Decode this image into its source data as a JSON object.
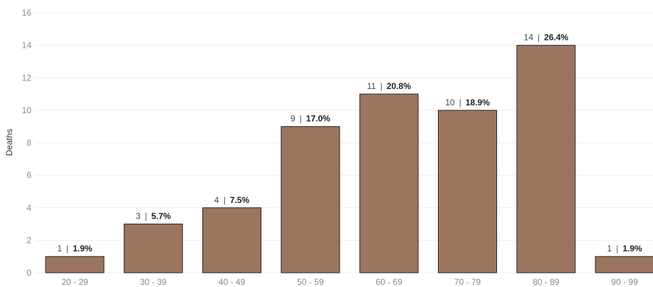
{
  "chart_data": {
    "type": "bar",
    "title": "",
    "xlabel": "",
    "ylabel": "Deaths",
    "ylim": [
      0,
      16
    ],
    "yticks": [
      0,
      2,
      4,
      6,
      8,
      10,
      12,
      14,
      16
    ],
    "grid": true,
    "categories": [
      "20 - 29",
      "30 - 39",
      "40 - 49",
      "50 - 59",
      "60 - 69",
      "70 - 79",
      "80 - 89",
      "90 - 99"
    ],
    "values": [
      1,
      3,
      4,
      9,
      11,
      10,
      14,
      1
    ],
    "percent_labels": [
      "1.9%",
      "5.7%",
      "7.5%",
      "17.0%",
      "20.8%",
      "18.9%",
      "26.4%",
      "1.9%"
    ],
    "bar_color": "#9b7560",
    "bar_stroke": "#2e2420"
  }
}
